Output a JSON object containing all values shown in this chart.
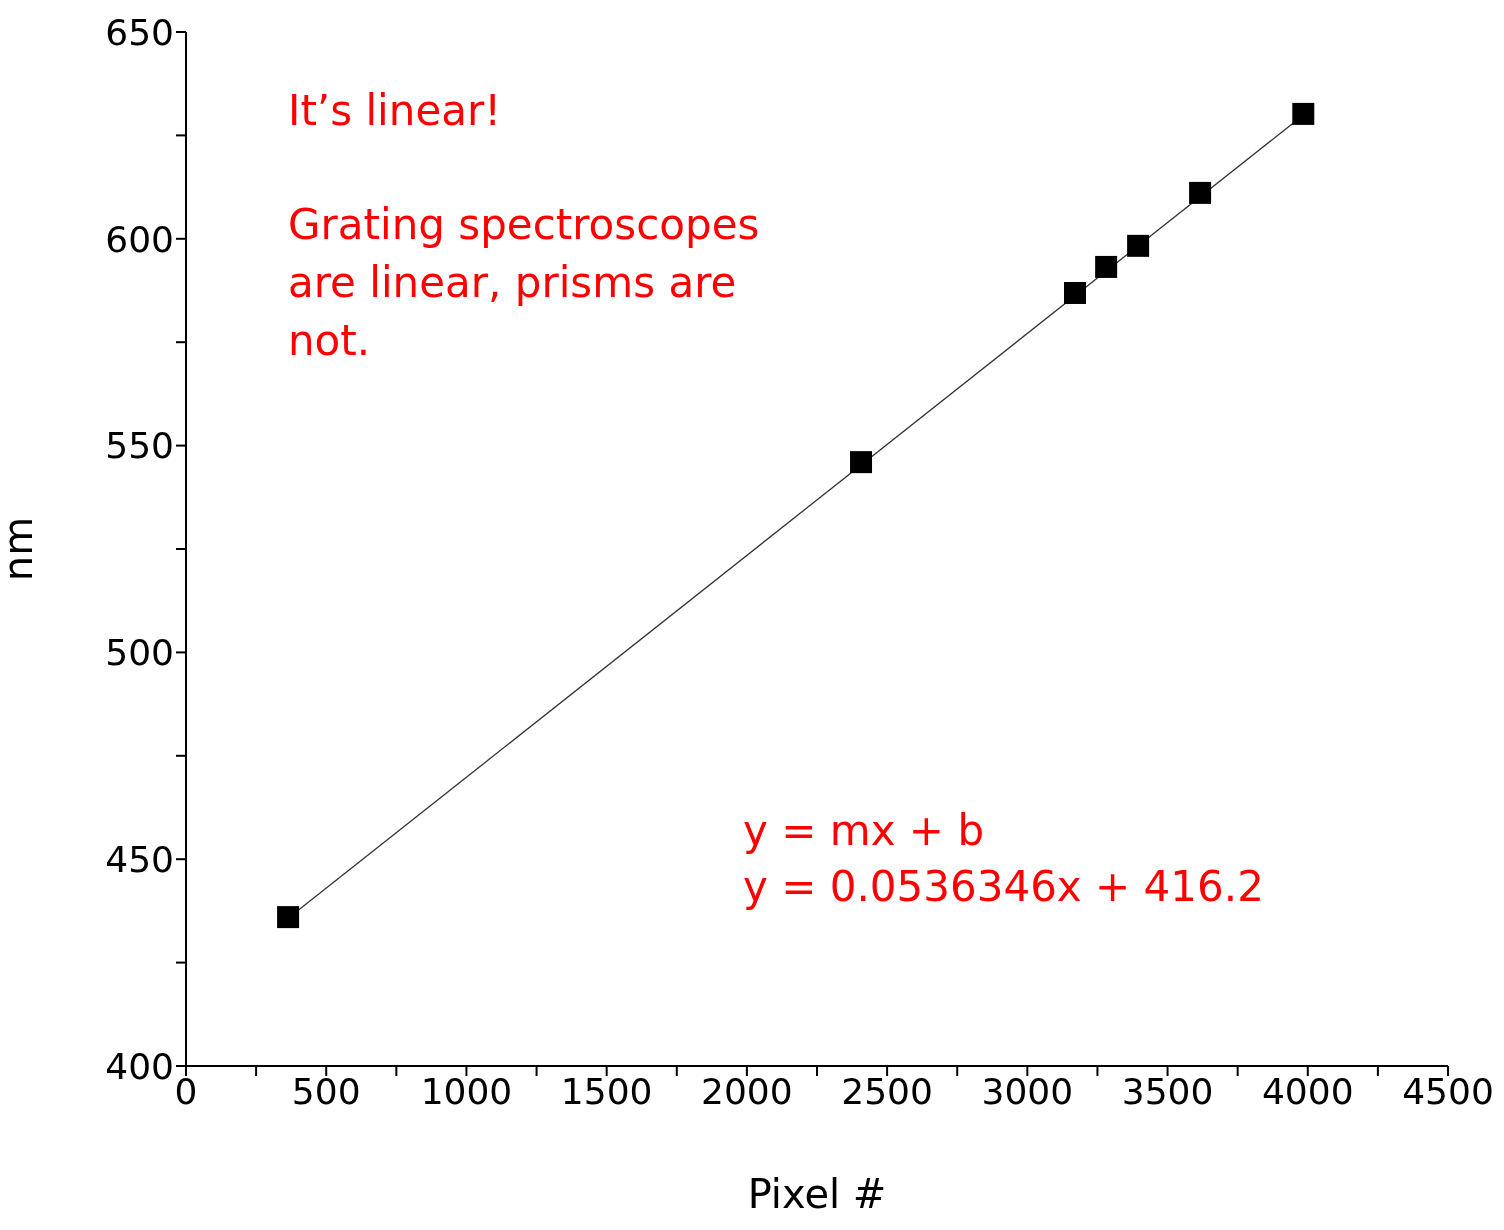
{
  "chart_data": {
    "type": "scatter",
    "xlabel": "Pixel #",
    "ylabel": "nm",
    "xlim": [
      0,
      4500
    ],
    "ylim": [
      400,
      650
    ],
    "xticks": [
      0,
      {
        "value": 250,
        "label": null
      },
      500,
      {
        "value": 750,
        "label": null
      },
      1000,
      {
        "value": 1250,
        "label": null
      },
      1500,
      {
        "value": 1750,
        "label": null
      },
      2000,
      {
        "value": 2250,
        "label": null
      },
      2500,
      {
        "value": 2750,
        "label": null
      },
      3000,
      {
        "value": 3250,
        "label": null
      },
      3500,
      {
        "value": 3750,
        "label": null
      },
      4000,
      {
        "value": 4250,
        "label": null
      },
      4500
    ],
    "yticks": [
      400,
      {
        "value": 425,
        "label": null
      },
      450,
      {
        "value": 475,
        "label": null
      },
      500,
      {
        "value": 525,
        "label": null
      },
      550,
      {
        "value": 575,
        "label": null
      },
      600,
      {
        "value": 625,
        "label": null
      },
      650
    ],
    "grid": false,
    "legend": false,
    "series": [
      {
        "type": "line",
        "color": "#333333",
        "marker": "none",
        "line_style": "solid",
        "x": [
          364,
          3984
        ],
        "values": [
          435.7,
          629.9
        ]
      },
      {
        "color": "#000000",
        "marker": "square",
        "x": [
          364,
          2407,
          3170,
          3281,
          3395,
          3616,
          3984
        ],
        "values": [
          436.0,
          546.0,
          586.9,
          593.2,
          598.3,
          611.1,
          630.2
        ]
      }
    ],
    "annotations": [
      "It’s linear!",
      "Grating spectroscopes are linear, prisms are not.",
      "y = mx + b",
      "y = 0.0536346x + 416.2"
    ]
  }
}
